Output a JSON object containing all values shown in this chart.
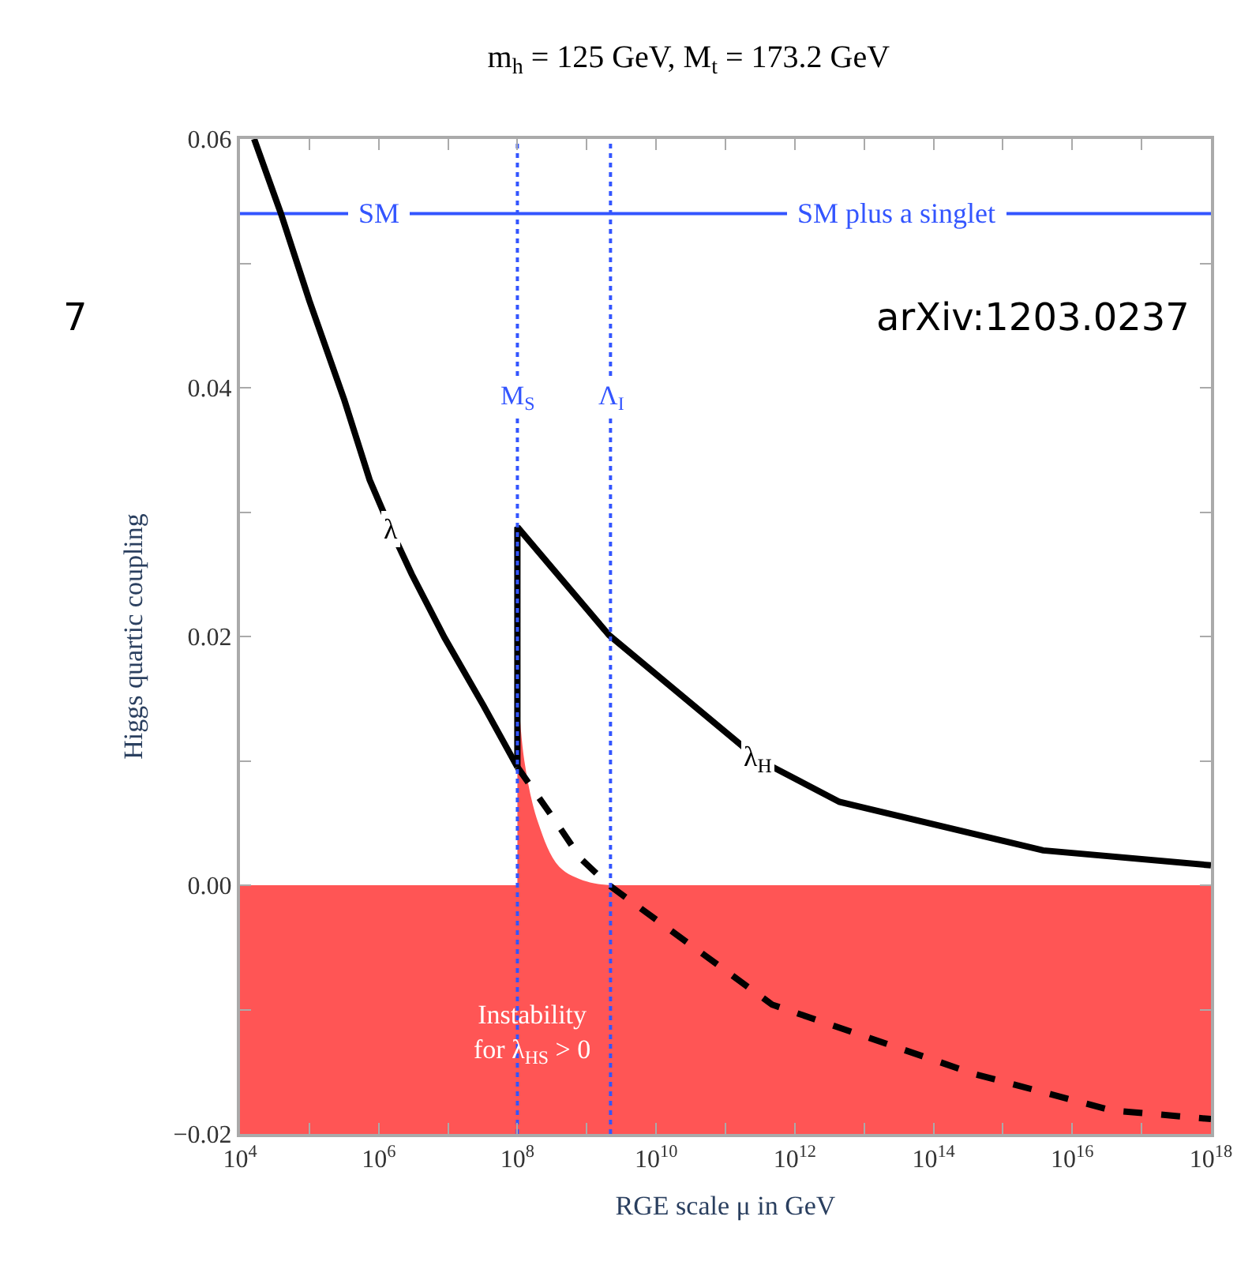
{
  "chart_data": {
    "type": "line",
    "title": "m$_{h}$ = 125 GeV, M$_{t}$ = 173.2 GeV",
    "xlabel": "RGE scale μ in GeV",
    "ylabel": "Higgs quartic coupling",
    "log": "x",
    "xlim": [
      10000.0,
      1e+18
    ],
    "ylim": [
      -0.02,
      0.06
    ],
    "xticks": [
      {
        "value": 10000.0,
        "label": "10$^{4}$"
      },
      {
        "value": 100000.0,
        "label": null
      },
      {
        "value": 1000000.0,
        "label": "10$^{6}$"
      },
      {
        "value": 10000000.0,
        "label": null
      },
      {
        "value": 100000000.0,
        "label": "10$^{8}$"
      },
      {
        "value": 1000000000.0,
        "label": null
      },
      {
        "value": 10000000000.0,
        "label": "10$^{10}$"
      },
      {
        "value": 100000000000.0,
        "label": null
      },
      {
        "value": 1000000000000.0,
        "label": "10$^{12}$"
      },
      {
        "value": 10000000000000.0,
        "label": null
      },
      {
        "value": 100000000000000.0,
        "label": "10$^{14}$"
      },
      {
        "value": 1000000000000000.0,
        "label": null
      },
      {
        "value": 1e+16,
        "label": "10$^{16}$"
      },
      {
        "value": 1e+17,
        "label": null
      },
      {
        "value": 1e+18,
        "label": "10$^{18}$"
      }
    ],
    "yticks": [
      {
        "value": -0.02,
        "label": "−0.02"
      },
      {
        "value": -0.01,
        "label": null
      },
      {
        "value": 0,
        "label": "0.00"
      },
      {
        "value": 0.01,
        "label": null
      },
      {
        "value": 0.02,
        "label": "0.02"
      },
      {
        "value": 0.03,
        "label": null
      },
      {
        "value": 0.04,
        "label": "0.04"
      },
      {
        "value": 0.05,
        "label": null
      },
      {
        "value": 0.06,
        "label": "0.06"
      }
    ],
    "grid": false,
    "legend": false,
    "series": [
      {
        "type": "area",
        "color": "#ff5555",
        "x": [
          100000000.0,
          126000000.0,
          200000000.0,
          400000000.0,
          1000000000.0,
          2200000000.0
        ],
        "values": [
          0.0167,
          0.01,
          0.005,
          0.0015,
          0.0003,
          0
        ]
      },
      {
        "name": "λ",
        "color": "#000000",
        "line_style": "solid",
        "x": [
          16000.0,
          39000.0,
          100000.0,
          320000.0,
          740000.0,
          1500000.0,
          3000000.0,
          8900000.0,
          32000000.0,
          100000000.0
        ],
        "values": [
          0.06,
          0.054,
          0.047,
          0.039,
          0.0326,
          0.0286,
          0.025,
          0.0199,
          0.0145,
          0.0095
        ]
      },
      {
        "name": "λ$_{H}$",
        "color": "#000000",
        "line_style": "solid",
        "x": [
          100000000.0,
          100000000.0,
          2100000000.0,
          300000000000.0,
          4400000000000.0,
          3800000000000000.0,
          1e+18
        ],
        "values": [
          0.0095,
          0.0288,
          0.0201,
          0.0101,
          0.0067,
          0.0028,
          0.0016
        ]
      },
      {
        "color": "#000000",
        "line_style": "dashed",
        "x": [
          100000000.0,
          320000000.0,
          830000000.0,
          2100000000.0,
          470000000000.0,
          400000000000000.0,
          3.7e+16,
          1e+18
        ],
        "values": [
          0.0095,
          0.0055,
          0.0021,
          0,
          -0.0096,
          -0.0152,
          -0.0181,
          -0.0188
        ]
      }
    ],
    "bands": [
      {
        "axis": "y",
        "from": -0.02,
        "to": 0,
        "label": "Instability\nfor λ$_{HS}$ > 0",
        "color": "#ff5555"
      }
    ],
    "ref_lines": [
      {
        "axis": "x",
        "value": 100000000.0,
        "label": "M$_{S}$",
        "color": "#3355ff",
        "line_style": "dotted"
      },
      {
        "axis": "x",
        "value": 2200000000.0,
        "label": "Λ$_{I}$",
        "color": "#3355ff",
        "line_style": "dotted"
      },
      {
        "axis": "y",
        "value": 0.054,
        "label": null,
        "color": "#3355ff",
        "line_style": "solid"
      }
    ],
    "annotations": [
      {
        "text": "SM",
        "x": 1000000.0,
        "y": 0.054
      },
      {
        "text": "SM plus a singlet",
        "x": 30000000000000.0,
        "y": 0.054
      },
      "arXiv:1203.0237",
      "7"
    ]
  }
}
